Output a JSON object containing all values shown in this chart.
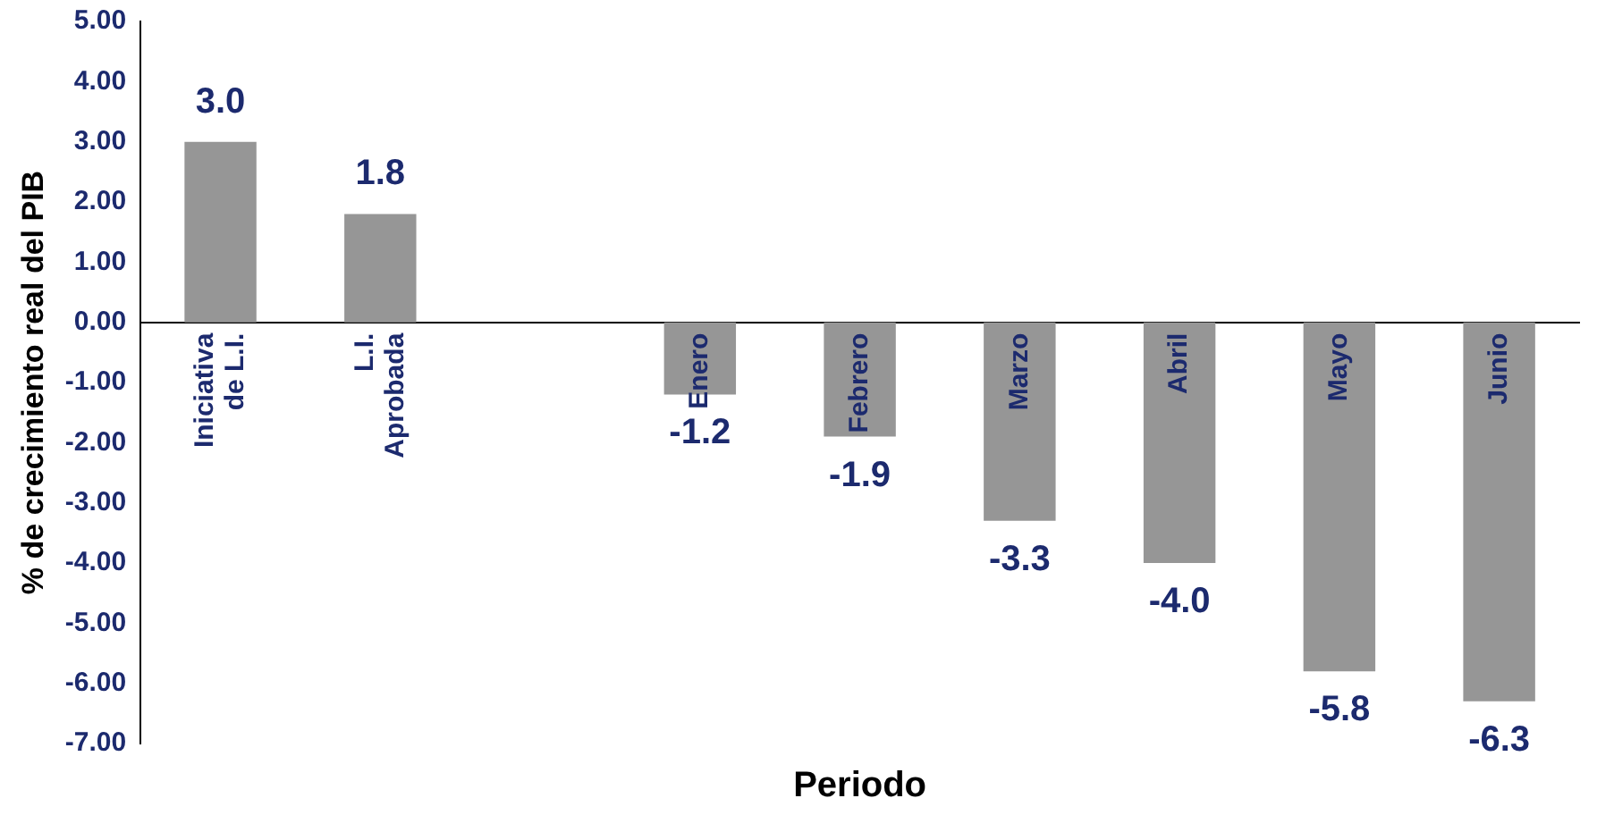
{
  "chart_data": {
    "type": "bar",
    "xlabel": "Periodo",
    "ylabel": "% de crecimiento real del PIB",
    "categories": [
      "Iniciativa de L.I.",
      "L.I. Aprobada",
      null,
      "Enero",
      "Febrero",
      "Marzo",
      "Abril",
      "Mayo",
      "Junio"
    ],
    "values": [
      3.0,
      1.8,
      null,
      -1.2,
      -1.9,
      -3.3,
      -4.0,
      -5.8,
      -6.3
    ],
    "value_labels": [
      "3.0",
      "1.8",
      null,
      "-1.2",
      "-1.9",
      "-3.3",
      "-4.0",
      "-5.8",
      "-6.3"
    ],
    "color": "#969696",
    "ylim": [
      -7,
      5
    ],
    "yticks": [
      {
        "value": 5,
        "label": "5.00"
      },
      {
        "value": 4,
        "label": "4.00"
      },
      {
        "value": 3,
        "label": "3.00"
      },
      {
        "value": 2,
        "label": "2.00"
      },
      {
        "value": 1,
        "label": "1.00"
      },
      {
        "value": 0,
        "label": "0.00"
      },
      {
        "value": -1,
        "label": "-1.00"
      },
      {
        "value": -2,
        "label": "-2.00"
      },
      {
        "value": -3,
        "label": "-3.00"
      },
      {
        "value": -4,
        "label": "-4.00"
      },
      {
        "value": -5,
        "label": "-5.00"
      },
      {
        "value": -6,
        "label": "-6.00"
      },
      {
        "value": -7,
        "label": "-7.00"
      }
    ],
    "grid": false,
    "legend": false
  }
}
